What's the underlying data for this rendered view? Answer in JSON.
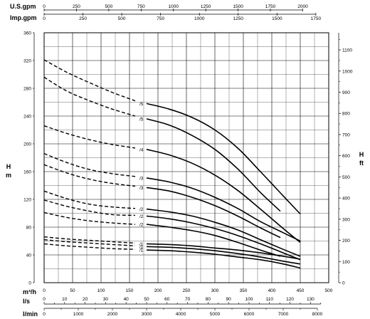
{
  "chart_data": {
    "type": "line",
    "title": "",
    "x_axes": {
      "flow_m3h": {
        "label": "m³/h",
        "ticks": [
          0,
          50,
          100,
          150,
          200,
          250,
          300,
          350,
          400,
          450,
          500
        ],
        "range": [
          0,
          500
        ]
      },
      "flow_ls": {
        "label": "l/s",
        "ticks": [
          0,
          10,
          20,
          30,
          40,
          50,
          60,
          70,
          80,
          90,
          100,
          110,
          120,
          130
        ],
        "range": [
          0,
          138.9
        ]
      },
      "flow_lmin": {
        "label": "l/min",
        "ticks": [
          0,
          1000,
          2000,
          3000,
          4000,
          5000,
          6000,
          7000,
          8000
        ],
        "range": [
          0,
          8333
        ]
      },
      "flow_usgpm": {
        "label": "U.S.gpm",
        "ticks": [
          0,
          250,
          500,
          750,
          1000,
          1250,
          1500,
          1750,
          2000
        ],
        "range": [
          0,
          2201
        ]
      },
      "flow_impgpm": {
        "label": "Imp.gpm",
        "ticks": [
          0,
          250,
          500,
          750,
          1000,
          1250,
          1500,
          1750
        ],
        "range": [
          0,
          1833
        ]
      }
    },
    "y_axes": {
      "head_m": {
        "label": "H m",
        "ticks": [
          0,
          40,
          80,
          120,
          160,
          200,
          240,
          280,
          320,
          360
        ],
        "range": [
          0,
          360
        ]
      },
      "head_ft": {
        "label": "H ft",
        "ticks": [
          0,
          100,
          200,
          300,
          400,
          500,
          600,
          700,
          800,
          900,
          1000,
          1100
        ],
        "range": [
          0,
          1181
        ]
      }
    },
    "grid": true,
    "series": [
      {
        "name": "/5",
        "label_at": 160,
        "dashed_x": [
          0,
          40,
          80,
          120,
          160
        ],
        "dashed_y": [
          321,
          303,
          288,
          274,
          262
        ],
        "solid_x": [
          180,
          220,
          260,
          300,
          340,
          380,
          420,
          450
        ],
        "solid_y": [
          258,
          250,
          238,
          220,
          194,
          160,
          125,
          99
        ]
      },
      {
        "name": "/5",
        "label_at": 160,
        "dashed_x": [
          0,
          40,
          80,
          120,
          160
        ],
        "dashed_y": [
          296,
          276,
          262,
          250,
          240
        ],
        "solid_x": [
          180,
          220,
          260,
          300,
          340,
          380,
          415
        ],
        "solid_y": [
          236,
          227,
          212,
          192,
          164,
          130,
          103
        ]
      },
      {
        "name": "/4",
        "label_at": 160,
        "dashed_x": [
          0,
          40,
          80,
          120,
          160
        ],
        "dashed_y": [
          226,
          215,
          206,
          199,
          194
        ],
        "solid_x": [
          180,
          220,
          260,
          300,
          340,
          380,
          420,
          450
        ],
        "solid_y": [
          192,
          184,
          172,
          155,
          133,
          106,
          78,
          58
        ]
      },
      {
        "name": "/3",
        "label_at": 160,
        "dashed_x": [
          0,
          40,
          80,
          120,
          160
        ],
        "dashed_y": [
          186,
          173,
          163,
          157,
          153
        ],
        "solid_x": [
          180,
          220,
          260,
          300,
          340,
          380,
          420,
          450
        ],
        "solid_y": [
          151,
          145,
          136,
          123,
          107,
          88,
          72,
          60
        ]
      },
      {
        "name": "/3",
        "label_at": 160,
        "dashed_x": [
          0,
          40,
          80,
          120,
          160
        ],
        "dashed_y": [
          170,
          158,
          149,
          143,
          139
        ],
        "solid_x": [
          180,
          220,
          260,
          300,
          340,
          380,
          415
        ],
        "solid_y": [
          137,
          132,
          123,
          111,
          96,
          79,
          65
        ]
      },
      {
        "name": "/2",
        "label_at": 160,
        "dashed_x": [
          0,
          40,
          80,
          120,
          160
        ],
        "dashed_y": [
          132,
          121,
          113,
          109,
          107
        ],
        "solid_x": [
          180,
          220,
          260,
          300,
          340,
          380,
          420,
          450
        ],
        "solid_y": [
          106,
          102,
          96,
          87,
          76,
          62,
          48,
          38
        ]
      },
      {
        "name": "/2",
        "label_at": 160,
        "dashed_x": [
          0,
          40,
          80,
          120,
          160
        ],
        "dashed_y": [
          119,
          110,
          103,
          98,
          97
        ],
        "solid_x": [
          180,
          220,
          260,
          300,
          340,
          380,
          420,
          450
        ],
        "solid_y": [
          96,
          92,
          86,
          78,
          68,
          56,
          43,
          33
        ]
      },
      {
        "name": "/2",
        "label_at": 160,
        "dashed_x": [
          0,
          40,
          80,
          120,
          160
        ],
        "dashed_y": [
          101,
          94,
          89,
          86,
          84
        ],
        "solid_x": [
          180,
          220,
          260,
          300,
          340,
          380,
          415
        ],
        "solid_y": [
          84,
          80,
          75,
          68,
          58,
          47,
          38
        ]
      },
      {
        "name": "/1",
        "label_at": 160,
        "dashed_x": [
          0,
          40,
          80,
          120,
          160
        ],
        "dashed_y": [
          66,
          63,
          61,
          59,
          57
        ],
        "solid_x": [
          180,
          220,
          260,
          300,
          340,
          380,
          420,
          450
        ],
        "solid_y": [
          56,
          55,
          53,
          50,
          47,
          43,
          38,
          34
        ]
      },
      {
        "name": "/1",
        "label_at": 160,
        "dashed_x": [
          0,
          40,
          80,
          120,
          160
        ],
        "dashed_y": [
          62,
          59,
          57,
          55,
          53
        ],
        "solid_x": [
          180,
          220,
          260,
          300,
          340,
          380,
          420,
          450
        ],
        "solid_y": [
          52,
          51,
          49,
          46,
          42,
          37,
          31,
          27
        ]
      },
      {
        "name": "/1",
        "label_at": 160,
        "dashed_x": [
          0,
          40,
          80,
          120,
          160
        ],
        "dashed_y": [
          56,
          53,
          51,
          49,
          48
        ],
        "solid_x": [
          180,
          220,
          260,
          300,
          340,
          380,
          420,
          450
        ],
        "solid_y": [
          47,
          46,
          44,
          41,
          37,
          33,
          27,
          21
        ]
      }
    ]
  }
}
